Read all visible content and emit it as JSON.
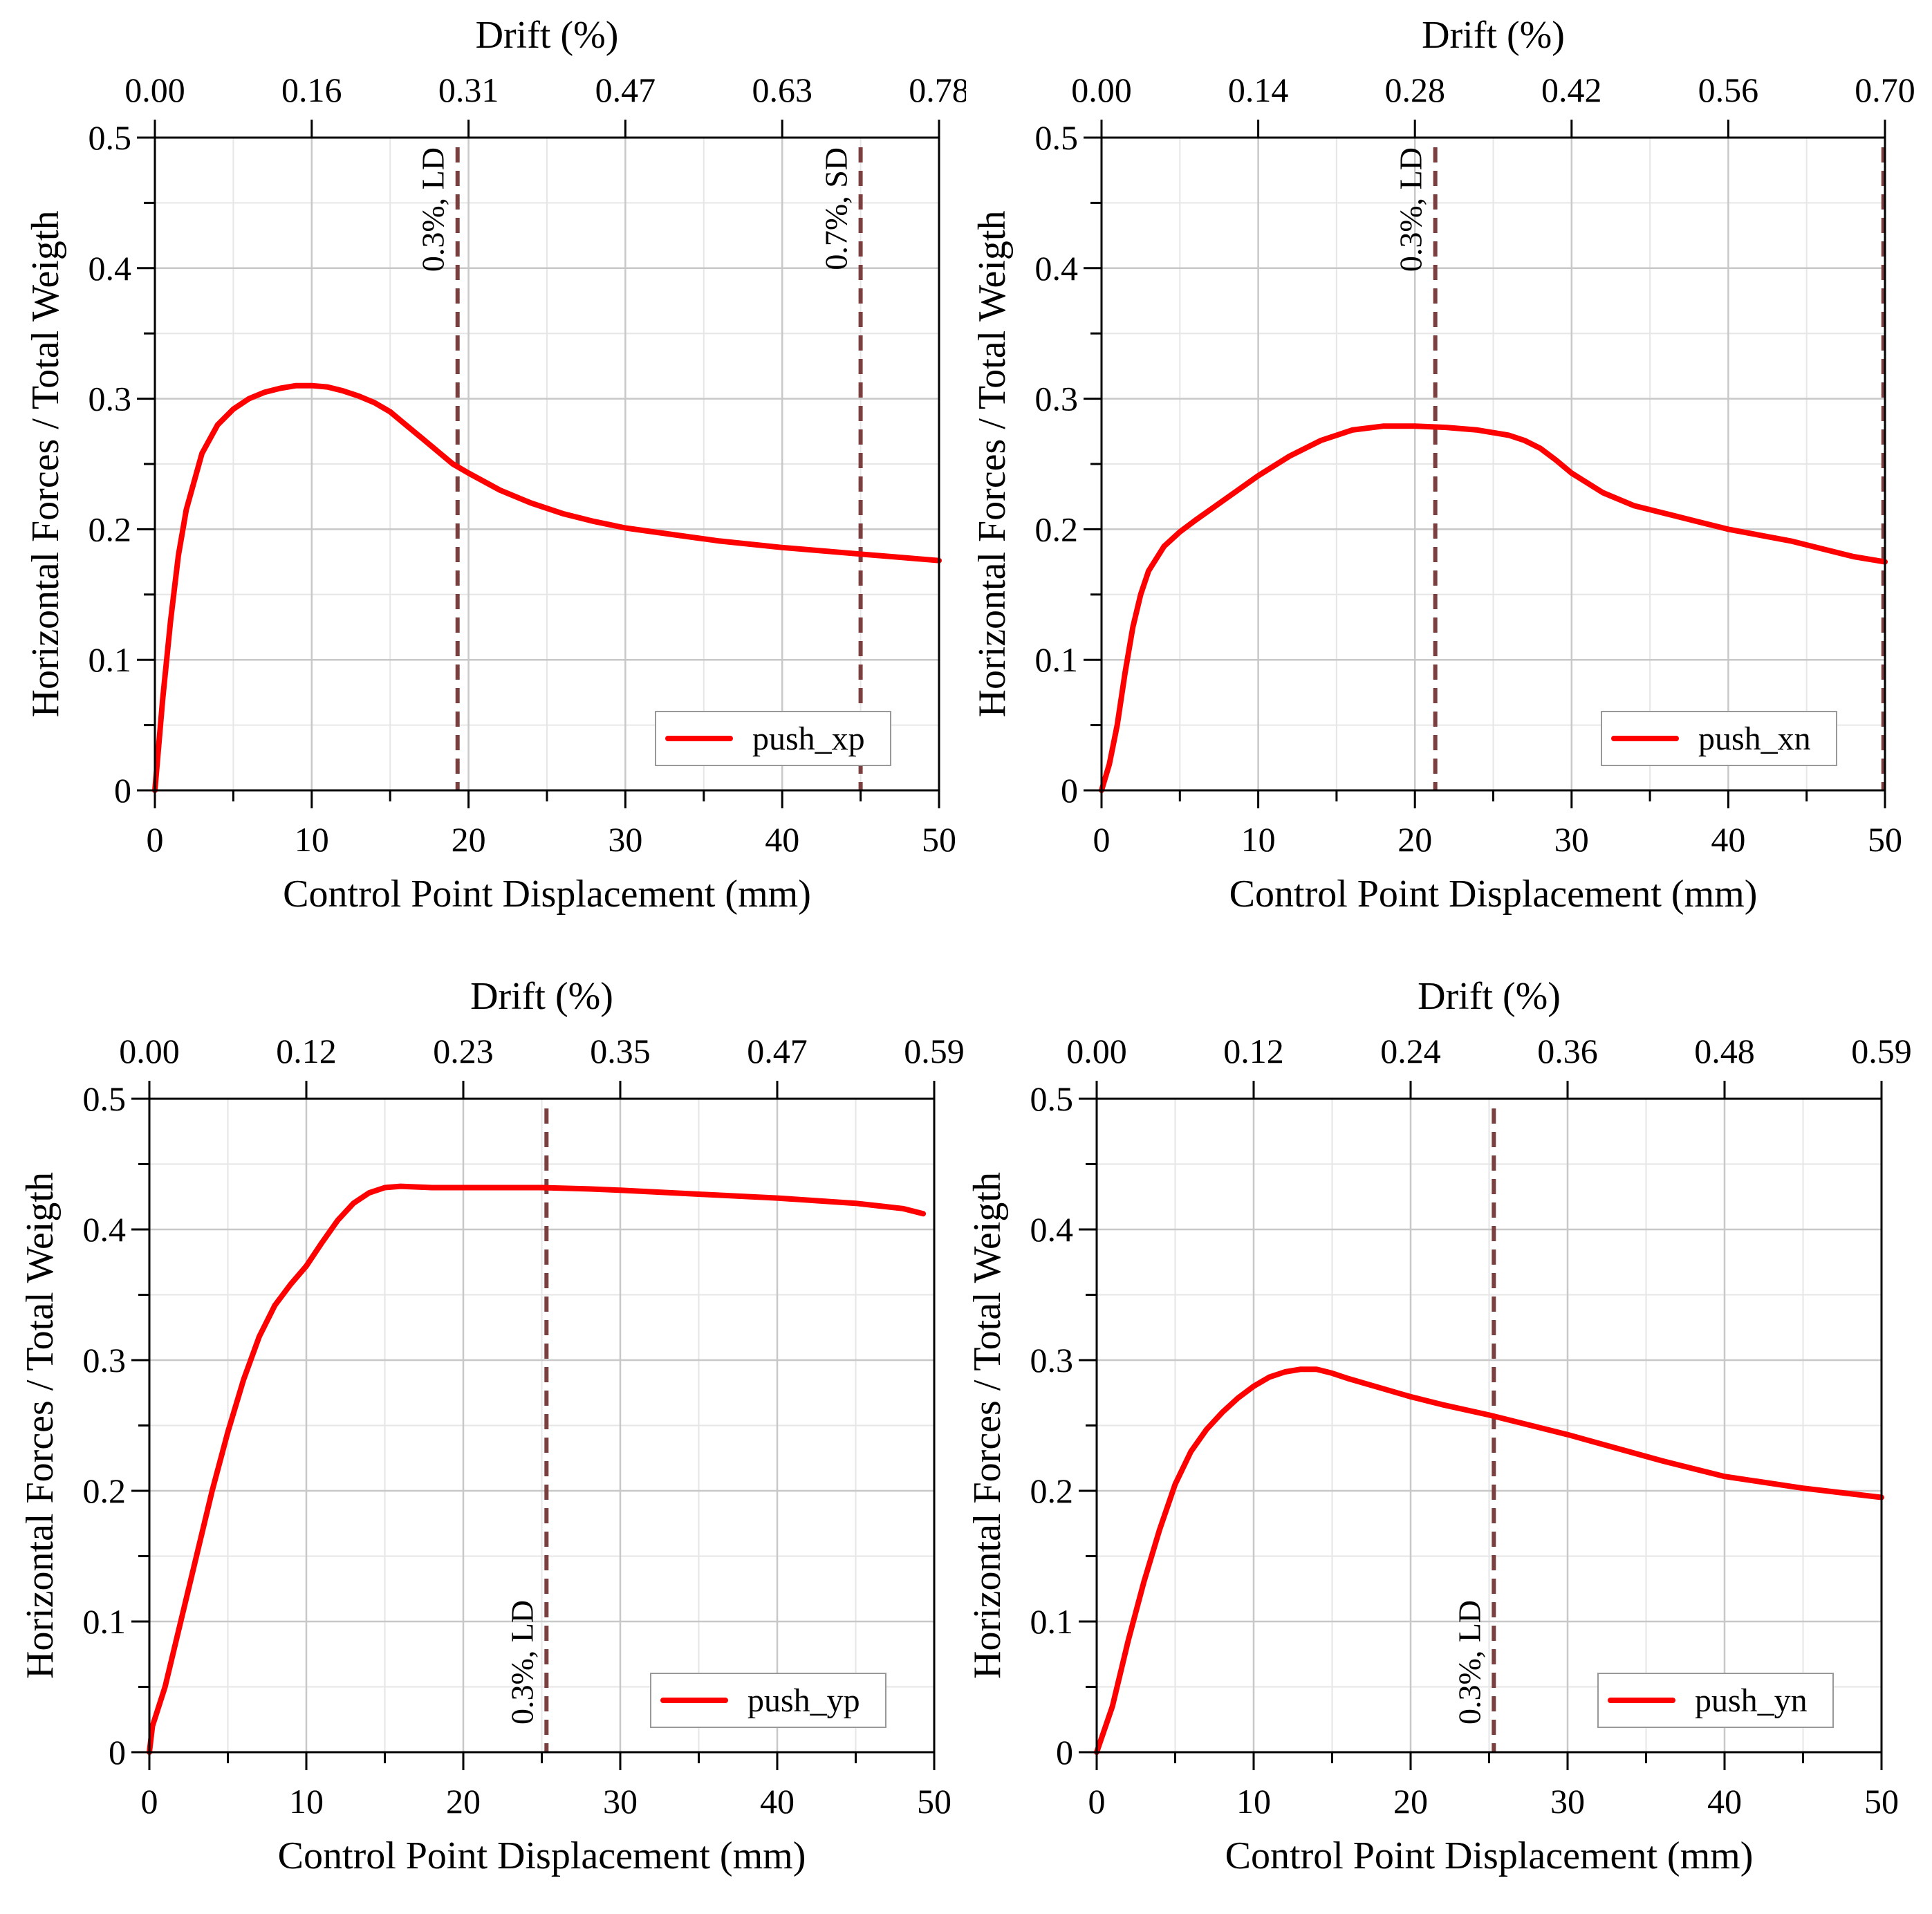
{
  "colors": {
    "series": "#ff0000",
    "threshold": "#7b3f3f",
    "grid": "#c8c8c8",
    "minor_grid": "#e6e6e6",
    "axis": "#000000"
  },
  "chart_data": [
    {
      "type": "line",
      "id": "push_xp",
      "title": "",
      "xlabel": "Control Point Displacement (mm)",
      "ylabel": "Horizontal Forces / Total Weigth",
      "x2label": "Drift (%)",
      "xlim": [
        0,
        50
      ],
      "ylim": [
        0,
        0.5
      ],
      "xticks": [
        "0",
        "10",
        "20",
        "30",
        "40",
        "50"
      ],
      "yticks": [
        "0",
        "0.1",
        "0.2",
        "0.3",
        "0.4",
        "0.5"
      ],
      "x2ticks": [
        "0.00",
        "0.16",
        "0.31",
        "0.47",
        "0.63",
        "0.78"
      ],
      "series": [
        {
          "name": "push_xp",
          "x": [
            0,
            0.5,
            1,
            1.5,
            2,
            3,
            4,
            5,
            6,
            7,
            8,
            9,
            10,
            11,
            12,
            13,
            14,
            15,
            16,
            17,
            18,
            19,
            20,
            22,
            24,
            26,
            28,
            30,
            33,
            36,
            40,
            45,
            50
          ],
          "y": [
            0,
            0.07,
            0.13,
            0.18,
            0.215,
            0.258,
            0.28,
            0.292,
            0.3,
            0.305,
            0.308,
            0.31,
            0.31,
            0.309,
            0.306,
            0.302,
            0.297,
            0.29,
            0.28,
            0.27,
            0.26,
            0.25,
            0.243,
            0.23,
            0.22,
            0.212,
            0.206,
            0.201,
            0.196,
            0.191,
            0.186,
            0.181,
            0.176
          ]
        }
      ],
      "thresholds": [
        {
          "x": 19.3,
          "label": "0.3%, LD"
        },
        {
          "x": 45.0,
          "label": "0.7%, SD"
        }
      ],
      "legend": {
        "position": "bottom-right",
        "entries": [
          "push_xp"
        ]
      }
    },
    {
      "type": "line",
      "id": "push_xn",
      "title": "",
      "xlabel": "Control Point Displacement (mm)",
      "ylabel": "Horizontal Forces / Total Weigth",
      "x2label": "Drift (%)",
      "xlim": [
        0,
        50
      ],
      "ylim": [
        0,
        0.5
      ],
      "xticks": [
        "0",
        "10",
        "20",
        "30",
        "40",
        "50"
      ],
      "yticks": [
        "0",
        "0.1",
        "0.2",
        "0.3",
        "0.4",
        "0.5"
      ],
      "x2ticks": [
        "0.00",
        "0.14",
        "0.28",
        "0.42",
        "0.56",
        "0.70"
      ],
      "series": [
        {
          "name": "push_xn",
          "x": [
            0,
            0.5,
            1,
            1.5,
            2,
            2.5,
            3,
            4,
            5,
            6,
            8,
            10,
            12,
            14,
            16,
            18,
            20,
            22,
            24,
            26,
            27,
            28,
            29,
            30,
            32,
            34,
            36,
            38,
            40,
            44,
            46,
            48,
            50
          ],
          "y": [
            0,
            0.02,
            0.05,
            0.09,
            0.125,
            0.15,
            0.168,
            0.187,
            0.198,
            0.207,
            0.224,
            0.241,
            0.256,
            0.268,
            0.276,
            0.279,
            0.279,
            0.278,
            0.276,
            0.272,
            0.268,
            0.262,
            0.253,
            0.243,
            0.228,
            0.218,
            0.212,
            0.206,
            0.2,
            0.191,
            0.185,
            0.179,
            0.175
          ]
        }
      ],
      "thresholds": [
        {
          "x": 21.3,
          "label": "0.3%, LD"
        },
        {
          "x": 49.9,
          "label": ""
        }
      ],
      "legend": {
        "position": "bottom-right",
        "entries": [
          "push_xn"
        ]
      }
    },
    {
      "type": "line",
      "id": "push_yp",
      "title": "",
      "xlabel": "Control Point Displacement (mm)",
      "ylabel": "Horizontal Forces / Total Weigth",
      "x2label": "Drift (%)",
      "xlim": [
        0,
        50
      ],
      "ylim": [
        0,
        0.5
      ],
      "xticks": [
        "0",
        "10",
        "20",
        "30",
        "40",
        "50"
      ],
      "yticks": [
        "0",
        "0.1",
        "0.2",
        "0.3",
        "0.4",
        "0.5"
      ],
      "x2ticks": [
        "0.00",
        "0.12",
        "0.23",
        "0.35",
        "0.47",
        "0.59"
      ],
      "series": [
        {
          "name": "push_yp",
          "x": [
            0,
            0.2,
            1,
            2,
            3,
            4,
            5,
            6,
            7,
            8,
            9,
            10,
            11,
            12,
            13,
            14,
            15,
            16,
            18,
            20,
            22,
            25,
            28,
            30,
            35,
            40,
            45,
            48,
            49.3
          ],
          "y": [
            0,
            0.02,
            0.05,
            0.1,
            0.15,
            0.2,
            0.245,
            0.285,
            0.318,
            0.342,
            0.358,
            0.372,
            0.39,
            0.407,
            0.42,
            0.428,
            0.432,
            0.433,
            0.432,
            0.432,
            0.432,
            0.432,
            0.431,
            0.43,
            0.427,
            0.424,
            0.42,
            0.416,
            0.412
          ]
        }
      ],
      "thresholds": [
        {
          "x": 25.3,
          "label": "0.3%, LD"
        }
      ],
      "legend": {
        "position": "bottom-right",
        "entries": [
          "push_yp"
        ]
      }
    },
    {
      "type": "line",
      "id": "push_yn",
      "title": "",
      "xlabel": "Control Point Displacement (mm)",
      "ylabel": "Horizontal Forces / Total Weigth",
      "x2label": "Drift (%)",
      "xlim": [
        0,
        50
      ],
      "ylim": [
        0,
        0.5
      ],
      "xticks": [
        "0",
        "10",
        "20",
        "30",
        "40",
        "50"
      ],
      "yticks": [
        "0",
        "0.1",
        "0.2",
        "0.3",
        "0.4",
        "0.5"
      ],
      "x2ticks": [
        "0.00",
        "0.12",
        "0.24",
        "0.36",
        "0.48",
        "0.59"
      ],
      "series": [
        {
          "name": "push_yn",
          "x": [
            0,
            1,
            2,
            3,
            4,
            5,
            6,
            7,
            8,
            9,
            10,
            11,
            12,
            13,
            14,
            15,
            16,
            18,
            20,
            22,
            25,
            28,
            30,
            33,
            36,
            40,
            45,
            50
          ],
          "y": [
            0,
            0.035,
            0.085,
            0.13,
            0.17,
            0.205,
            0.23,
            0.247,
            0.26,
            0.271,
            0.28,
            0.287,
            0.291,
            0.293,
            0.293,
            0.29,
            0.286,
            0.279,
            0.272,
            0.266,
            0.258,
            0.249,
            0.243,
            0.233,
            0.223,
            0.211,
            0.202,
            0.195
          ]
        }
      ],
      "thresholds": [
        {
          "x": 25.3,
          "label": "0.3%, LD"
        }
      ],
      "legend": {
        "position": "bottom-right",
        "entries": [
          "push_yn"
        ]
      }
    }
  ]
}
